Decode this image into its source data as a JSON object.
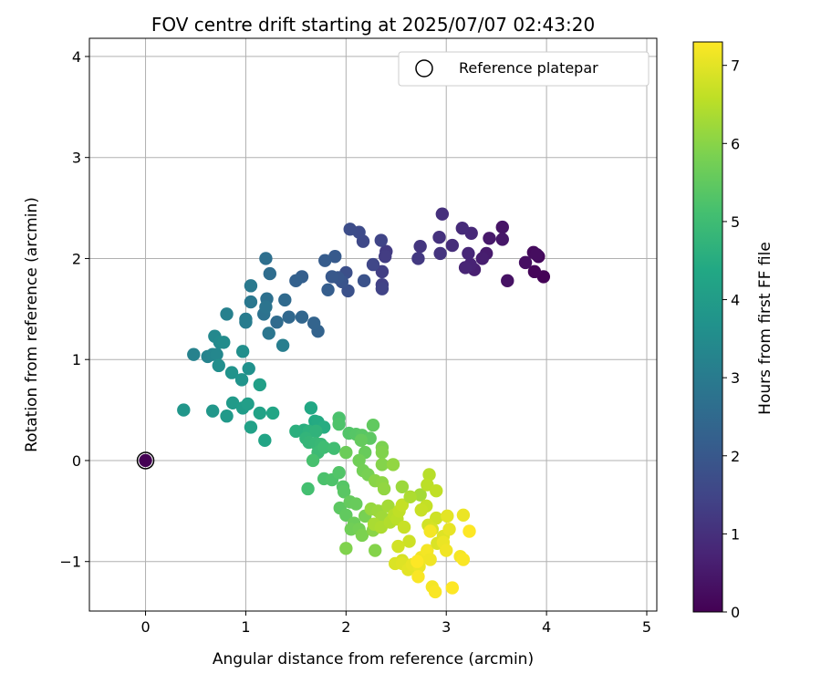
{
  "chart_data": {
    "type": "scatter",
    "title": "FOV centre drift starting at 2025/07/07 02:43:20",
    "xlabel": "Angular distance from reference (arcmin)",
    "ylabel": "Rotation from reference (arcmin)",
    "xlim": [
      -0.56,
      5.1
    ],
    "ylim": [
      -1.49,
      4.18
    ],
    "xticks": [
      "0",
      "1",
      "2",
      "3",
      "4",
      "5"
    ],
    "yticks": [
      "−1",
      "0",
      "1",
      "2",
      "3",
      "4"
    ],
    "grid": true,
    "legend": {
      "position": "top-right",
      "label": "Reference platepar"
    },
    "colorbar": {
      "label": "Hours from first FF file",
      "min": 0,
      "max": 7.3,
      "ticks": [
        "0",
        "1",
        "2",
        "3",
        "4",
        "5",
        "6",
        "7"
      ],
      "colormap": "viridis"
    },
    "reference_point": {
      "x": 0,
      "y": 0
    },
    "points": [
      [
        3.97,
        1.82,
        0.05
      ],
      [
        3.88,
        1.87,
        0.1
      ],
      [
        3.92,
        2.02,
        0.15
      ],
      [
        3.87,
        2.06,
        0.2
      ],
      [
        3.9,
        2.04,
        0.25
      ],
      [
        3.79,
        1.96,
        0.3
      ],
      [
        3.61,
        1.78,
        0.35
      ],
      [
        3.56,
        2.31,
        0.4
      ],
      [
        3.56,
        2.19,
        0.45
      ],
      [
        3.43,
        2.2,
        0.5
      ],
      [
        3.4,
        2.05,
        0.55
      ],
      [
        3.36,
        2.0,
        0.6
      ],
      [
        3.28,
        1.89,
        0.65
      ],
      [
        3.24,
        1.94,
        0.7
      ],
      [
        3.19,
        1.91,
        0.75
      ],
      [
        3.22,
        2.05,
        0.8
      ],
      [
        3.25,
        2.25,
        0.85
      ],
      [
        3.16,
        2.3,
        0.9
      ],
      [
        3.06,
        2.13,
        0.95
      ],
      [
        2.96,
        2.44,
        1.0
      ],
      [
        2.93,
        2.21,
        1.05
      ],
      [
        2.94,
        2.05,
        1.1
      ],
      [
        2.74,
        2.12,
        1.15
      ],
      [
        2.72,
        2.0,
        1.2
      ],
      [
        2.4,
        2.07,
        1.25
      ],
      [
        2.39,
        2.02,
        1.3
      ],
      [
        2.36,
        1.87,
        1.35
      ],
      [
        2.36,
        1.74,
        1.4
      ],
      [
        2.36,
        1.7,
        1.45
      ],
      [
        2.35,
        2.18,
        1.5
      ],
      [
        2.27,
        1.94,
        1.55
      ],
      [
        2.17,
        2.17,
        1.6
      ],
      [
        2.13,
        2.26,
        1.65
      ],
      [
        2.04,
        2.29,
        1.7
      ],
      [
        2.0,
        1.86,
        1.75
      ],
      [
        2.02,
        1.68,
        1.8
      ],
      [
        2.18,
        1.78,
        1.85
      ],
      [
        1.96,
        1.77,
        1.9
      ],
      [
        1.92,
        1.81,
        1.95
      ],
      [
        1.86,
        1.82,
        2.0
      ],
      [
        1.89,
        2.02,
        2.05
      ],
      [
        1.79,
        1.98,
        2.1
      ],
      [
        1.82,
        1.69,
        2.15
      ],
      [
        1.56,
        1.82,
        2.2
      ],
      [
        1.5,
        1.78,
        2.25
      ],
      [
        1.72,
        1.28,
        2.3
      ],
      [
        1.68,
        1.36,
        2.35
      ],
      [
        1.56,
        1.42,
        2.4
      ],
      [
        1.43,
        1.42,
        2.45
      ],
      [
        1.39,
        1.59,
        2.5
      ],
      [
        1.31,
        1.37,
        2.55
      ],
      [
        1.24,
        1.85,
        2.6
      ],
      [
        1.2,
        2.0,
        2.65
      ],
      [
        1.21,
        1.6,
        2.7
      ],
      [
        1.18,
        1.45,
        2.75
      ],
      [
        1.2,
        1.52,
        2.8
      ],
      [
        1.23,
        1.26,
        2.85
      ],
      [
        1.05,
        1.57,
        2.9
      ],
      [
        1.05,
        1.73,
        2.95
      ],
      [
        1.0,
        1.4,
        3.0
      ],
      [
        1.0,
        1.37,
        3.05
      ],
      [
        1.37,
        1.14,
        3.1
      ],
      [
        0.81,
        1.45,
        3.15
      ],
      [
        0.48,
        1.05,
        3.2
      ],
      [
        0.62,
        1.03,
        3.25
      ],
      [
        0.67,
        1.05,
        3.3
      ],
      [
        0.71,
        1.05,
        3.35
      ],
      [
        0.69,
        1.23,
        3.4
      ],
      [
        0.74,
        1.17,
        3.45
      ],
      [
        0.78,
        1.17,
        3.5
      ],
      [
        0.73,
        0.94,
        3.55
      ],
      [
        0.97,
        1.08,
        3.6
      ],
      [
        1.03,
        0.91,
        3.65
      ],
      [
        0.86,
        0.87,
        3.7
      ],
      [
        0.96,
        0.8,
        3.75
      ],
      [
        0.38,
        0.5,
        3.8
      ],
      [
        0.67,
        0.49,
        3.85
      ],
      [
        0.81,
        0.44,
        3.9
      ],
      [
        0.87,
        0.57,
        3.95
      ],
      [
        0.97,
        0.52,
        4.0
      ],
      [
        1.02,
        0.56,
        4.05
      ],
      [
        1.14,
        0.75,
        4.1
      ],
      [
        1.05,
        0.33,
        4.15
      ],
      [
        1.14,
        0.47,
        4.2
      ],
      [
        1.19,
        0.2,
        4.25
      ],
      [
        1.27,
        0.47,
        4.3
      ],
      [
        1.65,
        0.52,
        4.35
      ],
      [
        1.69,
        0.39,
        4.4
      ],
      [
        1.72,
        0.38,
        4.45
      ],
      [
        1.78,
        0.33,
        4.5
      ],
      [
        1.58,
        0.3,
        4.55
      ],
      [
        1.5,
        0.29,
        4.6
      ],
      [
        1.63,
        0.29,
        4.65
      ],
      [
        1.7,
        0.29,
        4.7
      ],
      [
        1.6,
        0.22,
        4.75
      ],
      [
        1.63,
        0.18,
        4.8
      ],
      [
        1.7,
        0.17,
        4.85
      ],
      [
        1.75,
        0.16,
        4.9
      ],
      [
        1.72,
        0.08,
        4.95
      ],
      [
        1.78,
        0.13,
        5.0
      ],
      [
        1.88,
        0.12,
        5.05
      ],
      [
        1.62,
        -0.28,
        5.1
      ],
      [
        1.67,
        0.0,
        5.15
      ],
      [
        1.78,
        -0.18,
        5.2
      ],
      [
        1.86,
        -0.19,
        5.25
      ],
      [
        1.93,
        -0.12,
        5.3
      ],
      [
        1.97,
        -0.26,
        5.35
      ],
      [
        1.98,
        -0.31,
        5.4
      ],
      [
        1.94,
        -0.47,
        5.45
      ],
      [
        2.0,
        -0.54,
        5.5
      ],
      [
        2.04,
        -0.41,
        5.55
      ],
      [
        2.1,
        -0.43,
        5.6
      ],
      [
        2.08,
        -0.62,
        5.65
      ],
      [
        2.05,
        -0.68,
        5.7
      ],
      [
        2.13,
        -0.68,
        5.75
      ],
      [
        2.19,
        -0.55,
        5.8
      ],
      [
        2.16,
        -0.74,
        5.85
      ],
      [
        2.0,
        -0.87,
        5.9
      ],
      [
        2.29,
        -0.89,
        5.95
      ],
      [
        2.27,
        -0.69,
        6.0
      ],
      [
        1.93,
        0.42,
        5.2
      ],
      [
        1.93,
        0.36,
        5.25
      ],
      [
        2.03,
        0.27,
        5.3
      ],
      [
        2.1,
        0.26,
        5.35
      ],
      [
        2.16,
        0.25,
        5.4
      ],
      [
        2.24,
        0.22,
        5.45
      ],
      [
        2.27,
        0.35,
        5.5
      ],
      [
        2.15,
        0.2,
        5.55
      ],
      [
        2.19,
        0.08,
        5.6
      ],
      [
        2.0,
        0.08,
        5.65
      ],
      [
        2.13,
        0.0,
        5.7
      ],
      [
        2.17,
        -0.1,
        5.75
      ],
      [
        2.22,
        -0.14,
        5.8
      ],
      [
        2.36,
        0.13,
        5.85
      ],
      [
        2.36,
        0.08,
        5.9
      ],
      [
        2.36,
        -0.04,
        5.95
      ],
      [
        2.29,
        -0.2,
        6.0
      ],
      [
        2.36,
        -0.22,
        6.05
      ],
      [
        2.38,
        -0.28,
        6.1
      ],
      [
        2.25,
        -0.48,
        6.15
      ],
      [
        2.32,
        -0.5,
        6.2
      ],
      [
        2.36,
        -0.56,
        6.25
      ],
      [
        2.42,
        -0.45,
        6.3
      ],
      [
        2.28,
        -0.63,
        6.35
      ],
      [
        2.35,
        -0.66,
        6.4
      ],
      [
        2.44,
        -0.61,
        6.45
      ],
      [
        2.48,
        -0.54,
        6.5
      ],
      [
        2.51,
        -0.58,
        6.55
      ],
      [
        2.53,
        -0.5,
        6.6
      ],
      [
        2.56,
        -0.44,
        6.65
      ],
      [
        2.58,
        -0.66,
        6.7
      ],
      [
        2.63,
        -0.8,
        6.75
      ],
      [
        2.52,
        -0.85,
        6.8
      ],
      [
        2.56,
        -0.99,
        6.85
      ],
      [
        2.49,
        -1.02,
        6.9
      ],
      [
        2.56,
        -1.02,
        6.95
      ],
      [
        2.62,
        -1.08,
        7.0
      ],
      [
        2.66,
        -1.03,
        7.05
      ],
      [
        2.73,
        -1.05,
        7.1
      ],
      [
        2.75,
        -0.96,
        7.15
      ],
      [
        2.81,
        -0.89,
        7.2
      ],
      [
        2.72,
        -1.15,
        7.25
      ],
      [
        2.71,
        -1.0,
        7.3
      ],
      [
        2.47,
        -0.04,
        6.1
      ],
      [
        2.56,
        -0.26,
        6.2
      ],
      [
        2.74,
        -0.34,
        6.3
      ],
      [
        2.64,
        -0.36,
        6.4
      ],
      [
        2.83,
        -0.14,
        6.5
      ],
      [
        2.81,
        -0.24,
        6.55
      ],
      [
        2.9,
        -0.3,
        6.6
      ],
      [
        2.8,
        -0.45,
        6.65
      ],
      [
        2.75,
        -0.49,
        6.7
      ],
      [
        2.9,
        -0.57,
        6.75
      ],
      [
        2.82,
        -0.64,
        6.8
      ],
      [
        2.86,
        -0.68,
        6.85
      ],
      [
        2.91,
        -0.82,
        6.9
      ],
      [
        2.97,
        -0.75,
        6.95
      ],
      [
        3.01,
        -0.55,
        7.0
      ],
      [
        3.03,
        -0.68,
        7.05
      ],
      [
        2.97,
        -0.81,
        7.1
      ],
      [
        3.0,
        -0.89,
        7.15
      ],
      [
        2.84,
        -0.7,
        7.2
      ],
      [
        2.84,
        -0.98,
        7.15
      ],
      [
        2.86,
        -1.25,
        7.2
      ],
      [
        2.89,
        -1.3,
        7.25
      ],
      [
        3.06,
        -1.26,
        7.3
      ],
      [
        3.14,
        -0.95,
        7.2
      ],
      [
        3.17,
        -0.98,
        7.25
      ],
      [
        3.23,
        -0.7,
        7.3
      ],
      [
        3.17,
        -0.54,
        7.1
      ]
    ]
  }
}
